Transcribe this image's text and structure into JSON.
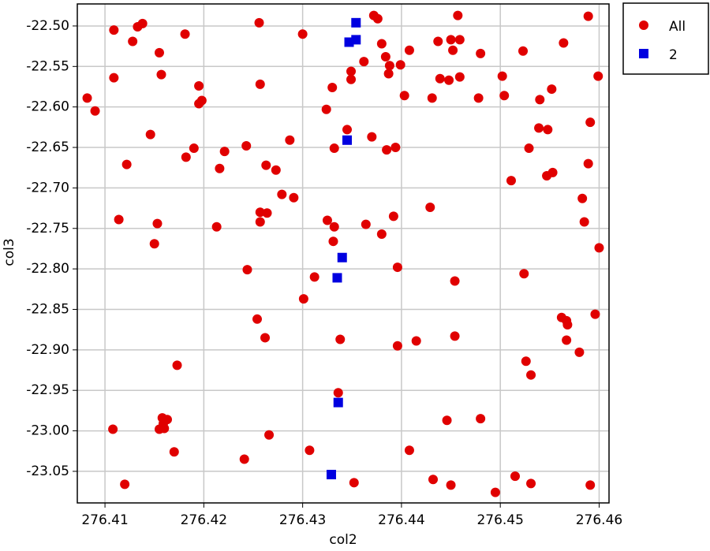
{
  "chart_data": {
    "type": "scatter",
    "x_label": "col2",
    "y_label": "col3",
    "grid": true,
    "legend": "outside-top-right",
    "xlim": [
      276.4072,
      276.461
    ],
    "ylim": [
      -23.089,
      -22.4728
    ],
    "xticks": [
      276.41,
      276.42,
      276.43,
      276.44,
      276.45,
      276.46
    ],
    "yticks": [
      {
        "value": -22.5,
        "label": "-22.50"
      },
      -22.55,
      {
        "value": -22.6,
        "label": "-22.60"
      },
      -22.65,
      {
        "value": -22.7,
        "label": "-22.70"
      },
      -22.75,
      {
        "value": -22.8,
        "label": "-22.80"
      },
      -22.85,
      {
        "value": -22.9,
        "label": "-22.90"
      },
      -22.95,
      {
        "value": -23.0,
        "label": "-23.00"
      },
      -23.05
    ],
    "series": [
      {
        "name": "All",
        "color": "#e00000",
        "marker": "circle",
        "x": [
          276.4082,
          276.409,
          276.4109,
          276.4109,
          276.4114,
          276.4122,
          276.4108,
          276.412,
          276.4128,
          276.4133,
          276.4138,
          276.4155,
          276.4157,
          276.4146,
          276.4153,
          276.415,
          276.4181,
          276.4195,
          276.4198,
          276.4195,
          276.419,
          276.4182,
          276.4221,
          276.4216,
          276.4173,
          276.4158,
          276.4159,
          276.4163,
          276.4155,
          276.416,
          276.417,
          276.4213,
          276.4243,
          276.4244,
          276.4256,
          276.4257,
          276.4263,
          276.4273,
          276.4257,
          276.4264,
          276.4257,
          276.4279,
          276.4291,
          276.4287,
          276.4254,
          276.4262,
          276.4266,
          276.4241,
          276.43,
          276.4324,
          276.433,
          276.4332,
          276.4325,
          276.4332,
          276.4331,
          276.4312,
          276.4301,
          276.4307,
          276.4338,
          276.4336,
          276.4352,
          276.4345,
          276.4349,
          276.4349,
          276.4362,
          276.4372,
          276.4376,
          276.438,
          276.4384,
          276.4388,
          276.4387,
          276.4399,
          276.4408,
          276.4403,
          276.437,
          276.4385,
          276.4394,
          276.4392,
          276.438,
          276.4364,
          276.4396,
          276.4396,
          276.4415,
          276.4408,
          276.4432,
          276.4429,
          276.4437,
          276.4431,
          276.4439,
          276.4448,
          276.445,
          276.4452,
          276.4457,
          276.4459,
          276.4459,
          276.4454,
          276.4454,
          276.4446,
          276.445,
          276.4478,
          276.448,
          276.448,
          276.4502,
          276.4504,
          276.4511,
          276.4495,
          276.4515,
          276.4523,
          276.4524,
          276.4529,
          276.4531,
          276.4531,
          276.4526,
          276.454,
          276.4539,
          276.4548,
          276.4552,
          276.4547,
          276.4553,
          276.4564,
          276.4562,
          276.4567,
          276.4568,
          276.4567,
          276.458,
          276.4583,
          276.4585,
          276.4589,
          276.4591,
          276.4589,
          276.4591,
          276.4599,
          276.46,
          276.4596
        ],
        "values": [
          -22.589,
          -22.605,
          -22.505,
          -22.564,
          -22.739,
          -22.671,
          -22.998,
          -23.066,
          -22.519,
          -22.501,
          -22.497,
          -22.533,
          -22.56,
          -22.634,
          -22.744,
          -22.769,
          -22.51,
          -22.574,
          -22.592,
          -22.596,
          -22.651,
          -22.662,
          -22.655,
          -22.676,
          -22.919,
          -22.984,
          -22.991,
          -22.986,
          -22.998,
          -22.997,
          -23.026,
          -22.748,
          -22.648,
          -22.801,
          -22.496,
          -22.572,
          -22.672,
          -22.678,
          -22.73,
          -22.731,
          -22.742,
          -22.708,
          -22.712,
          -22.641,
          -22.862,
          -22.885,
          -23.005,
          -23.035,
          -22.51,
          -22.603,
          -22.576,
          -22.651,
          -22.74,
          -22.748,
          -22.766,
          -22.81,
          -22.837,
          -23.024,
          -22.887,
          -22.953,
          -23.064,
          -22.628,
          -22.556,
          -22.566,
          -22.544,
          -22.487,
          -22.491,
          -22.522,
          -22.538,
          -22.549,
          -22.559,
          -22.548,
          -22.53,
          -22.586,
          -22.637,
          -22.653,
          -22.65,
          -22.735,
          -22.757,
          -22.745,
          -22.798,
          -22.895,
          -22.889,
          -23.024,
          -23.06,
          -22.724,
          -22.519,
          -22.589,
          -22.565,
          -22.567,
          -22.517,
          -22.53,
          -22.487,
          -22.517,
          -22.563,
          -22.815,
          -22.883,
          -22.987,
          -23.067,
          -22.589,
          -22.534,
          -22.985,
          -22.562,
          -22.586,
          -22.691,
          -23.076,
          -23.056,
          -22.531,
          -22.806,
          -22.651,
          -23.065,
          -22.931,
          -22.914,
          -22.591,
          -22.626,
          -22.628,
          -22.578,
          -22.685,
          -22.681,
          -22.521,
          -22.86,
          -22.864,
          -22.869,
          -22.888,
          -22.903,
          -22.713,
          -22.742,
          -22.488,
          -22.619,
          -22.67,
          -23.067,
          -22.562,
          -22.774,
          -22.856
        ]
      },
      {
        "name": "2",
        "color": "#0000e0",
        "marker": "square",
        "x": [
          276.4354,
          276.4354,
          276.4347,
          276.4345,
          276.434,
          276.4335,
          276.4336,
          276.4329
        ],
        "values": [
          -22.496,
          -22.517,
          -22.52,
          -22.641,
          -22.786,
          -22.811,
          -22.965,
          -23.054
        ]
      }
    ]
  }
}
